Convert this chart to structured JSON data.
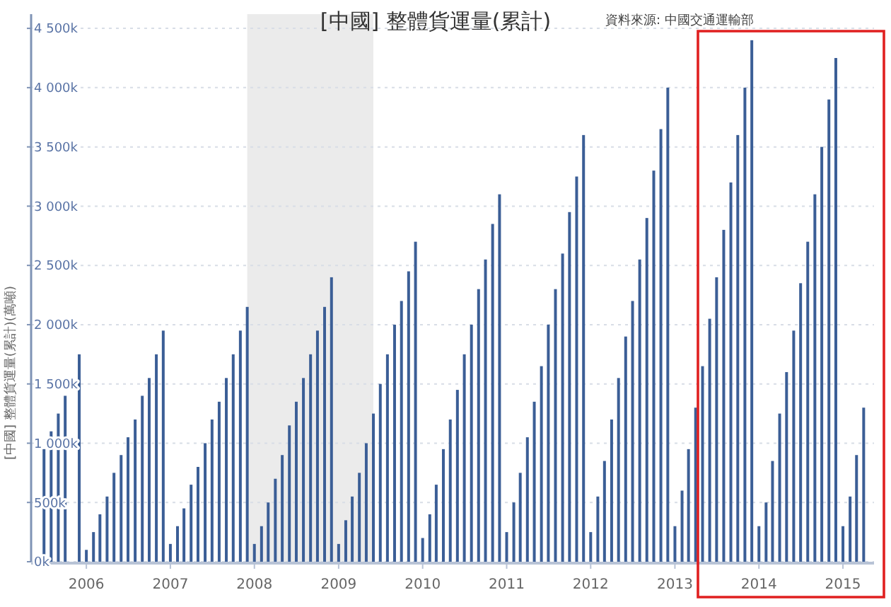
{
  "chart_data": {
    "type": "bar",
    "title": "[中國] 整體貨運量(累計)",
    "ylabel": "[中國] 整體貨運量(累計)(萬噸)",
    "annotations": [
      "資料來源: 中國交通運輸部"
    ],
    "x": [
      "2005-07",
      "2005-08",
      "2005-09",
      "2005-10",
      "2005-12",
      "2006-01",
      "2006-02",
      "2006-03",
      "2006-04",
      "2006-05",
      "2006-06",
      "2006-07",
      "2006-08",
      "2006-09",
      "2006-10",
      "2006-11",
      "2006-12",
      "2007-01",
      "2007-02",
      "2007-03",
      "2007-04",
      "2007-05",
      "2007-06",
      "2007-07",
      "2007-08",
      "2007-09",
      "2007-10",
      "2007-11",
      "2007-12",
      "2008-01",
      "2008-02",
      "2008-03",
      "2008-04",
      "2008-05",
      "2008-06",
      "2008-07",
      "2008-08",
      "2008-09",
      "2008-10",
      "2008-11",
      "2008-12",
      "2009-01",
      "2009-02",
      "2009-03",
      "2009-04",
      "2009-05",
      "2009-06",
      "2009-07",
      "2009-08",
      "2009-09",
      "2009-10",
      "2009-11",
      "2009-12",
      "2010-01",
      "2010-02",
      "2010-03",
      "2010-04",
      "2010-05",
      "2010-06",
      "2010-07",
      "2010-08",
      "2010-09",
      "2010-10",
      "2010-11",
      "2010-12",
      "2011-01",
      "2011-02",
      "2011-03",
      "2011-04",
      "2011-05",
      "2011-06",
      "2011-07",
      "2011-08",
      "2011-09",
      "2011-10",
      "2011-11",
      "2011-12",
      "2012-01",
      "2012-02",
      "2012-03",
      "2012-04",
      "2012-05",
      "2012-06",
      "2012-07",
      "2012-08",
      "2012-09",
      "2012-10",
      "2012-11",
      "2012-12",
      "2013-01",
      "2013-02",
      "2013-03",
      "2013-04",
      "2013-05",
      "2013-06",
      "2013-07",
      "2013-08",
      "2013-09",
      "2013-10",
      "2013-11",
      "2013-12",
      "2014-01",
      "2014-02",
      "2014-03",
      "2014-04",
      "2014-05",
      "2014-06",
      "2014-07",
      "2014-08",
      "2014-09",
      "2014-10",
      "2014-11",
      "2014-12",
      "2015-01",
      "2015-02",
      "2015-03",
      "2015-04"
    ],
    "series": [
      {
        "color": "#3b5e96",
        "values": [
          950,
          1100,
          1250,
          1400,
          1750,
          100,
          250,
          400,
          550,
          750,
          900,
          1050,
          1200,
          1400,
          1550,
          1750,
          1950,
          150,
          300,
          450,
          650,
          800,
          1000,
          1200,
          1350,
          1550,
          1750,
          1950,
          2150,
          150,
          300,
          500,
          700,
          900,
          1150,
          1350,
          1550,
          1750,
          1950,
          2150,
          2400,
          150,
          350,
          550,
          750,
          1000,
          1250,
          1500,
          1750,
          2000,
          2200,
          2450,
          2700,
          200,
          400,
          650,
          950,
          1200,
          1450,
          1750,
          2000,
          2300,
          2550,
          2850,
          3100,
          250,
          500,
          750,
          1050,
          1350,
          1650,
          2000,
          2300,
          2600,
          2950,
          3250,
          3600,
          250,
          550,
          850,
          1200,
          1550,
          1900,
          2200,
          2550,
          2900,
          3300,
          3650,
          4000,
          300,
          600,
          950,
          1300,
          1650,
          2050,
          2400,
          2800,
          3200,
          3600,
          4000,
          4400,
          300,
          500,
          850,
          1250,
          1600,
          1950,
          2350,
          2700,
          3100,
          3500,
          3900,
          4250,
          300,
          550,
          900,
          1300
        ]
      }
    ],
    "xlim": [
      "2005-05-06",
      "2015-05-16"
    ],
    "xticks": [
      "2006",
      "2007",
      "2008",
      "2009",
      "2010",
      "2011",
      "2012",
      "2013",
      "2014",
      "2015"
    ],
    "ylim": [
      0,
      4620
    ],
    "yticks": [
      {
        "value": 0,
        "label": "0k"
      },
      {
        "value": 500,
        "label": "500k"
      },
      {
        "value": 1000,
        "label": "1 000k"
      },
      {
        "value": 1500,
        "label": "1 500k"
      },
      {
        "value": 2000,
        "label": "2 000k"
      },
      {
        "value": 2500,
        "label": "2 500k"
      },
      {
        "value": 3000,
        "label": "3 000k"
      },
      {
        "value": 3500,
        "label": "3 500k"
      },
      {
        "value": 4000,
        "label": "4 000k"
      },
      {
        "value": 4500,
        "label": "4 500k"
      }
    ],
    "bands": [
      {
        "axis": "x",
        "from": "2007-12",
        "to": "2009-06",
        "color": "#ebebeb"
      }
    ],
    "grid": "y"
  }
}
